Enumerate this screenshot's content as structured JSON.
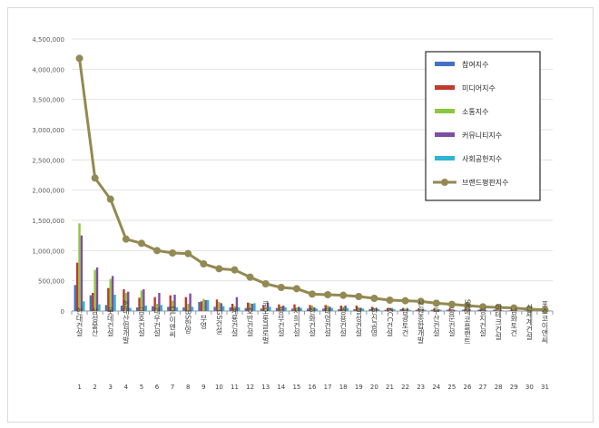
{
  "chart_data": {
    "type": "bar",
    "categories": [
      "현대건설",
      "삼성물산",
      "롯데건설",
      "현대산업개발",
      "금호건설",
      "대우건설",
      "DL이앤씨",
      "BS한양",
      "부영",
      "GS건설",
      "계룡건설",
      "호반건설",
      "코오롱글로벌",
      "동부건설",
      "서희건설",
      "한화건설",
      "태영건설",
      "쌍용건설",
      "일성건설",
      "한신공영",
      "KCC건설",
      "남광토건",
      "신원종합개발",
      "두산건설",
      "동문건설",
      "SK에코플랜트",
      "성지건설",
      "이테크건설",
      "남화토건",
      "신세계건설",
      "포스코이앤씨"
    ],
    "ranks": [
      "1",
      "2",
      "3",
      "4",
      "5",
      "6",
      "7",
      "8",
      "9",
      "10",
      "11",
      "12",
      "13",
      "14",
      "15",
      "16",
      "17",
      "18",
      "19",
      "20",
      "21",
      "22",
      "23",
      "24",
      "25",
      "26",
      "27",
      "28",
      "29",
      "30",
      "31"
    ],
    "ylim": [
      0,
      4500000
    ],
    "yticks": [
      "0",
      "500,000",
      "1,000,000",
      "1,500,000",
      "2,000,000",
      "2,500,000",
      "3,000,000",
      "3,500,000",
      "4,000,000",
      "4,500,000"
    ],
    "legend_position": "top-right",
    "series": [
      {
        "name": "참여지수",
        "color": "#4472c4",
        "kind": "bar",
        "values": [
          430000,
          260000,
          100000,
          90000,
          60000,
          80000,
          70000,
          60000,
          150000,
          70000,
          60000,
          50000,
          40000,
          50000,
          40000,
          40000,
          40000,
          30000,
          30000,
          30000,
          20000,
          30000,
          20000,
          20000,
          20000,
          20000,
          20000,
          20000,
          10000,
          10000,
          10000
        ]
      },
      {
        "name": "미디어지수",
        "color": "#c0392b",
        "kind": "bar",
        "values": [
          800000,
          300000,
          380000,
          360000,
          220000,
          230000,
          260000,
          230000,
          160000,
          190000,
          120000,
          140000,
          100000,
          110000,
          110000,
          100000,
          100000,
          90000,
          90000,
          70000,
          50000,
          50000,
          40000,
          40000,
          40000,
          40000,
          30000,
          30000,
          30000,
          20000,
          20000
        ]
      },
      {
        "name": "소통지수",
        "color": "#8dc63f",
        "kind": "bar",
        "values": [
          1450000,
          680000,
          530000,
          300000,
          340000,
          120000,
          170000,
          120000,
          200000,
          150000,
          80000,
          130000,
          60000,
          80000,
          60000,
          90000,
          90000,
          70000,
          60000,
          40000,
          50000,
          40000,
          30000,
          40000,
          30000,
          30000,
          20000,
          20000,
          20000,
          20000,
          20000
        ]
      },
      {
        "name": "커뮤니티지수",
        "color": "#7f4ea3",
        "kind": "bar",
        "values": [
          1250000,
          720000,
          580000,
          320000,
          360000,
          300000,
          270000,
          290000,
          180000,
          130000,
          230000,
          120000,
          140000,
          90000,
          70000,
          60000,
          70000,
          90000,
          50000,
          50000,
          30000,
          40000,
          30000,
          30000,
          20000,
          30000,
          20000,
          20000,
          20000,
          10000,
          10000
        ]
      },
      {
        "name": "사회공헌지수",
        "color": "#31b3d1",
        "kind": "bar",
        "values": [
          160000,
          110000,
          270000,
          50000,
          90000,
          100000,
          60000,
          70000,
          180000,
          80000,
          60000,
          130000,
          70000,
          60000,
          50000,
          40000,
          50000,
          50000,
          40000,
          30000,
          30000,
          20000,
          20000,
          20000,
          10000,
          10000,
          10000,
          10000,
          10000,
          10000,
          10000
        ]
      },
      {
        "name": "브랜드평판지수",
        "color": "#938953",
        "kind": "line",
        "values": [
          4180000,
          2200000,
          1850000,
          1190000,
          1120000,
          1000000,
          960000,
          950000,
          780000,
          700000,
          680000,
          560000,
          450000,
          390000,
          370000,
          280000,
          270000,
          260000,
          240000,
          210000,
          180000,
          170000,
          160000,
          130000,
          110000,
          90000,
          70000,
          60000,
          50000,
          30000,
          20000
        ]
      }
    ]
  }
}
